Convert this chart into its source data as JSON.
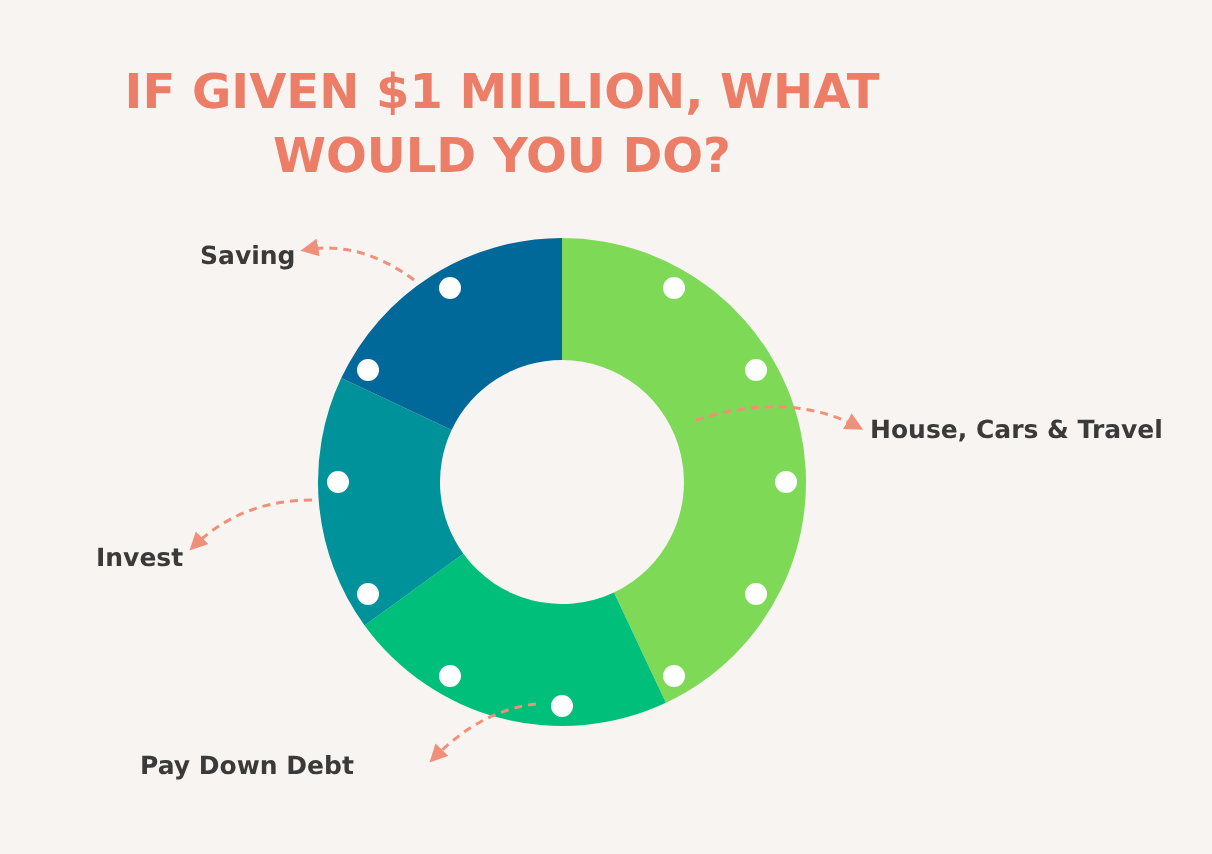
{
  "chart_data": {
    "type": "donut",
    "title": "IF GIVEN $1 MILLION, WHAT WOULD YOU DO?",
    "categories": [
      "House, Cars & Travel",
      "Pay Down Debt",
      "Invest",
      "Saving"
    ],
    "values": [
      43,
      22,
      17,
      18
    ],
    "colors": [
      "#7ed957",
      "#00bf7a",
      "#00929a",
      "#00699a"
    ]
  }
}
